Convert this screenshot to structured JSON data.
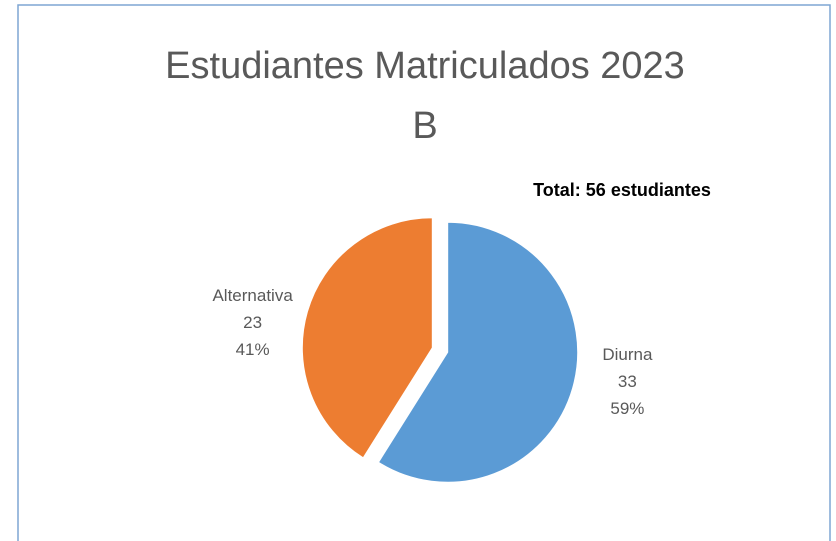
{
  "chart_data": {
    "type": "pie",
    "title": "Estudiantes Matriculados 2023 B",
    "annotation": "Total: 56 estudiantes",
    "categories": [
      "Diurna",
      "Alternativa"
    ],
    "values": [
      33,
      23
    ],
    "percent_labels": [
      "59%",
      "41%"
    ],
    "colors": [
      "#5b9bd5",
      "#ed7d31"
    ]
  }
}
